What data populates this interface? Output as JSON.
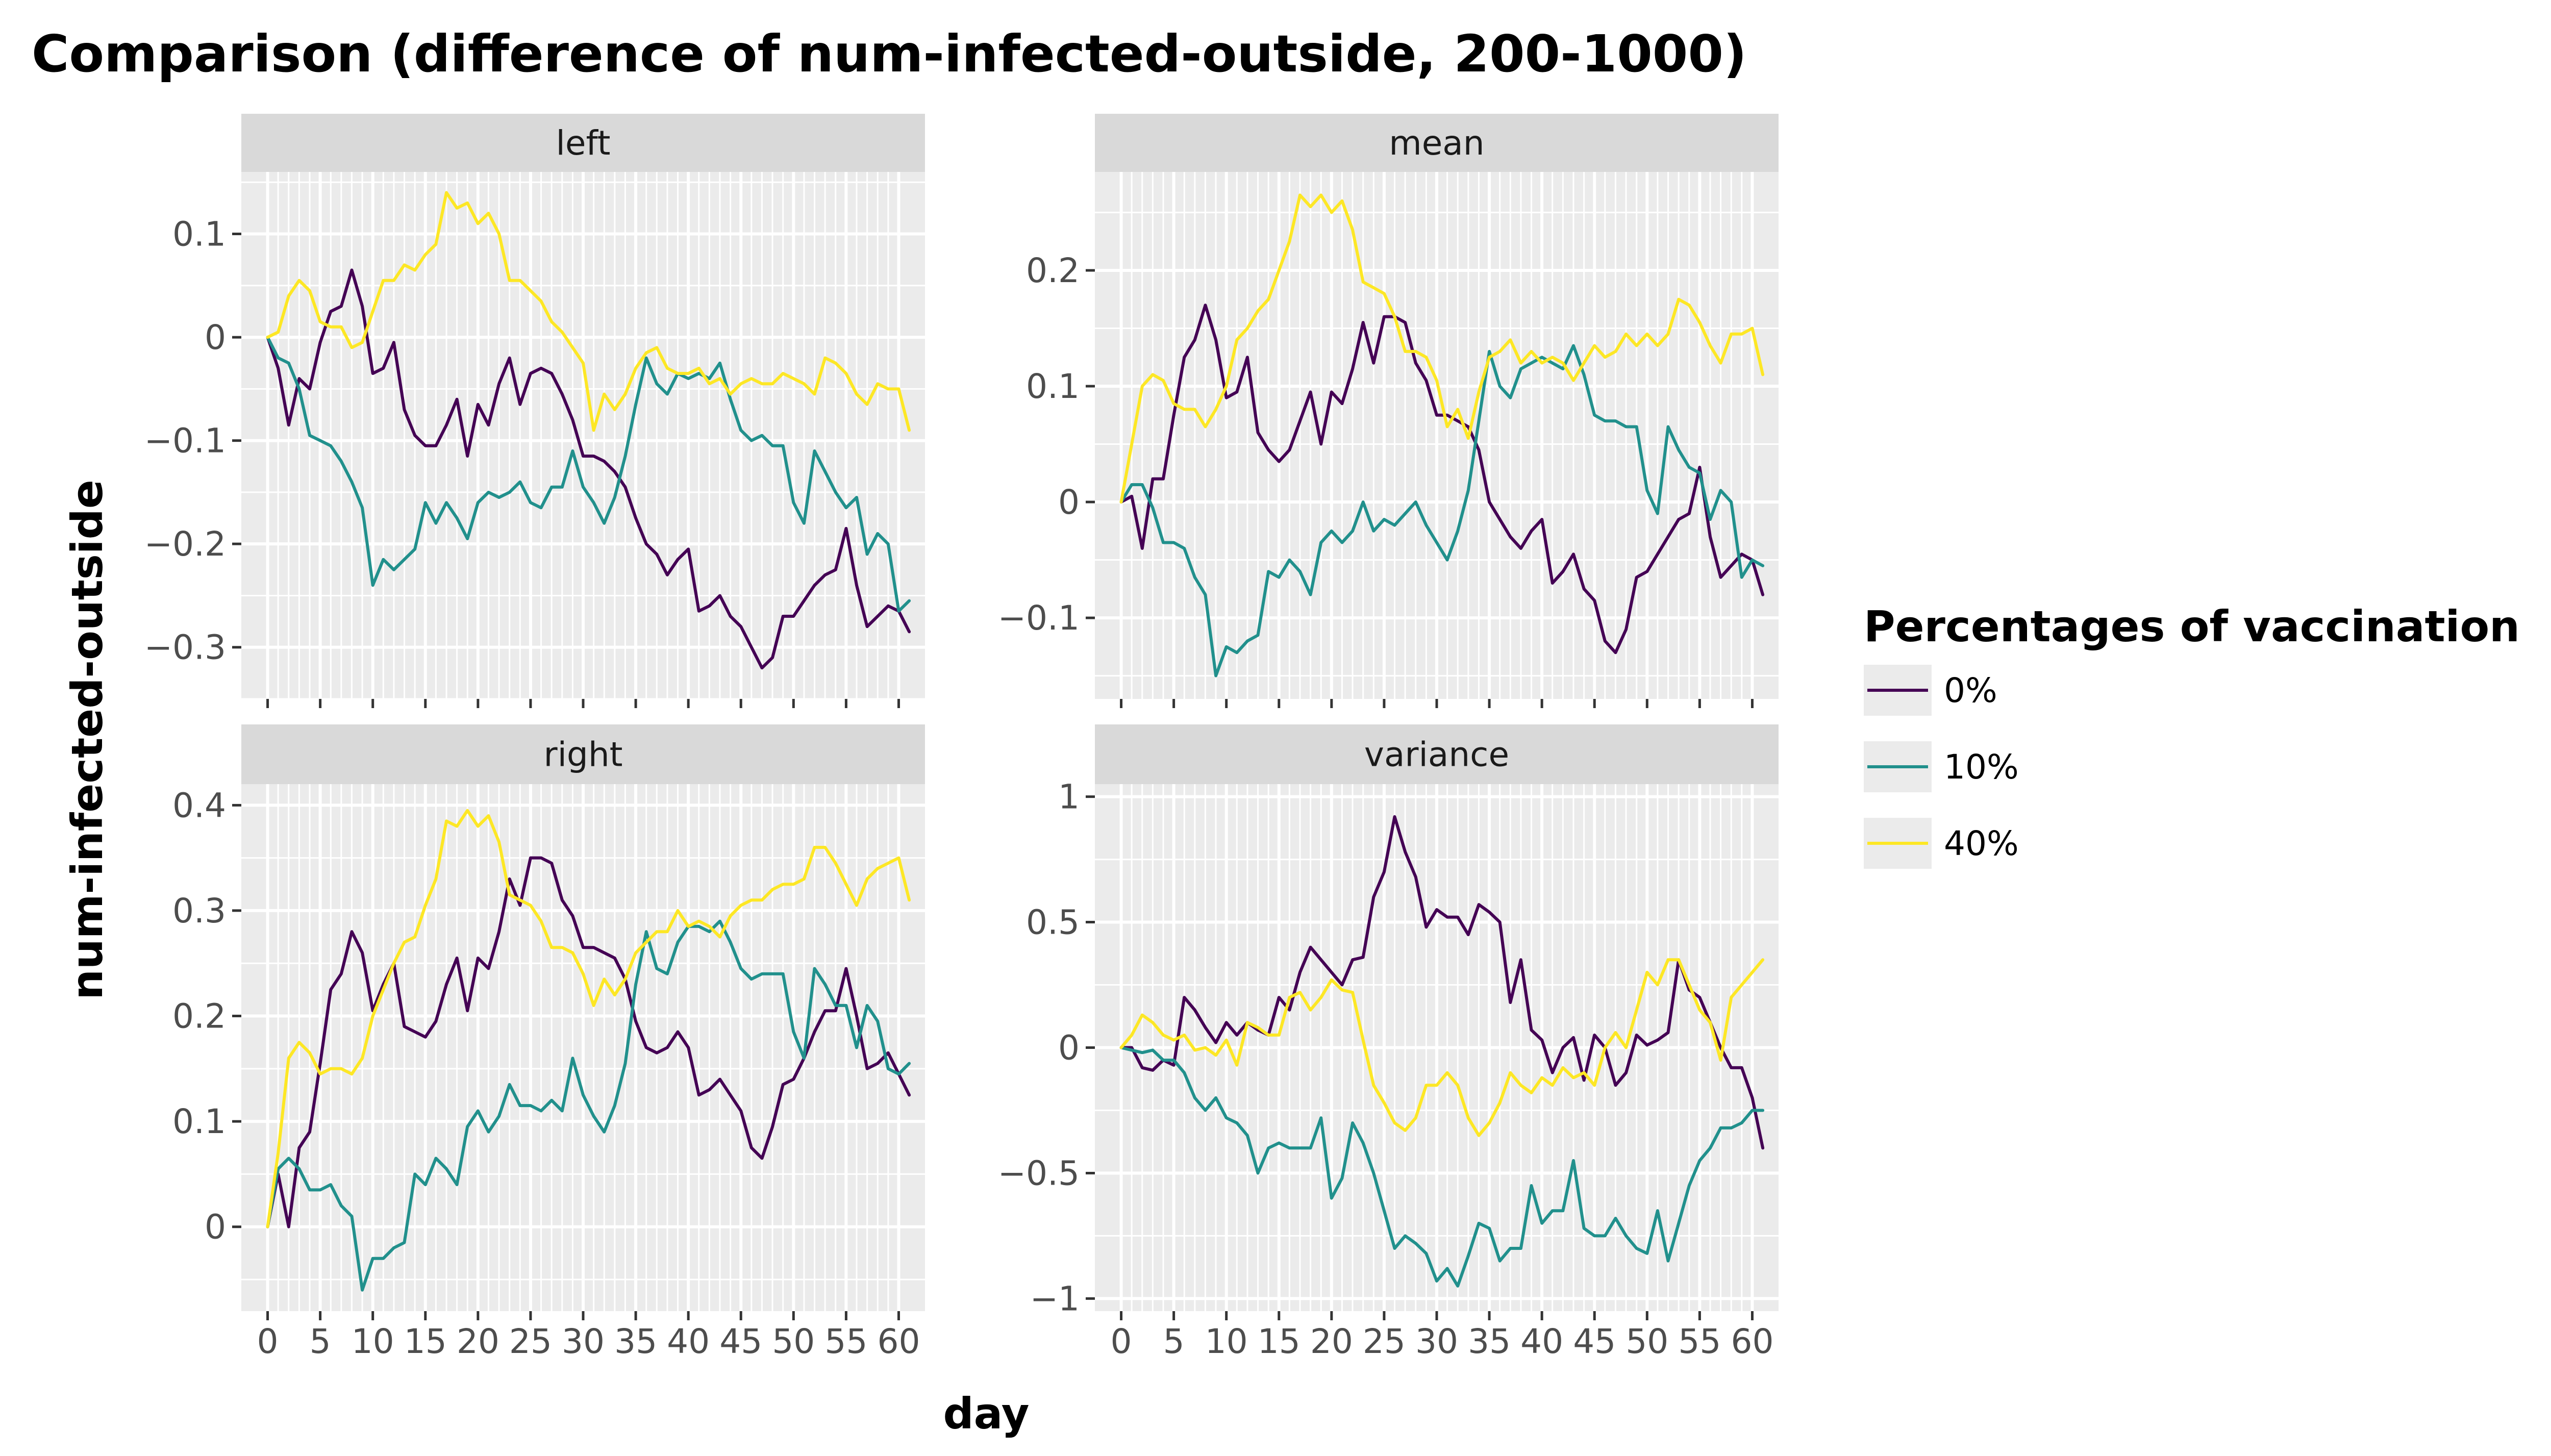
{
  "chart_data": {
    "type": "line",
    "title": "Comparison (difference of num-infected-outside, 200-1000)",
    "xlabel": "day",
    "ylabel": "num-infected-outside",
    "x_ticks": [
      0,
      5,
      10,
      15,
      20,
      25,
      30,
      35,
      40,
      45,
      50,
      55,
      60
    ],
    "x_tick_labels": [
      "0",
      "5",
      "10",
      "15",
      "20",
      "25",
      "30",
      "35",
      "40",
      "45",
      "50",
      "55",
      "60"
    ],
    "xlim": [
      -2.5,
      62.5
    ],
    "grid": true,
    "legend": {
      "title": "Percentages of vaccination",
      "placement": "right",
      "entries": [
        {
          "label": "0%",
          "color": "#440154"
        },
        {
          "label": "10%",
          "color": "#21908c"
        },
        {
          "label": "40%",
          "color": "#fde725"
        }
      ]
    },
    "panels": [
      {
        "strip": "left",
        "ylim": [
          -0.35,
          0.16
        ],
        "y_ticks": [
          0.1,
          0,
          -0.1,
          -0.2,
          -0.3
        ],
        "y_tick_labels": [
          "0.1",
          "0",
          "−0.1",
          "−0.2",
          "−0.3"
        ],
        "series": [
          {
            "name": "0%",
            "values": [
              0,
              -0.03,
              -0.085,
              -0.04,
              -0.05,
              -0.005,
              0.025,
              0.03,
              0.065,
              0.03,
              -0.035,
              -0.03,
              -0.005,
              -0.07,
              -0.095,
              -0.105,
              -0.105,
              -0.085,
              -0.06,
              -0.115,
              -0.065,
              -0.085,
              -0.045,
              -0.02,
              -0.065,
              -0.035,
              -0.03,
              -0.035,
              -0.055,
              -0.08,
              -0.115,
              -0.115,
              -0.12,
              -0.13,
              -0.145,
              -0.175,
              -0.2,
              -0.21,
              -0.23,
              -0.215,
              -0.205,
              -0.265,
              -0.26,
              -0.25,
              -0.27,
              -0.28,
              -0.3,
              -0.32,
              -0.31,
              -0.27,
              -0.27,
              -0.255,
              -0.24,
              -0.23,
              -0.225,
              -0.185,
              -0.24,
              -0.28,
              -0.27,
              -0.26,
              -0.265,
              -0.285
            ]
          },
          {
            "name": "10%",
            "values": [
              0,
              -0.02,
              -0.025,
              -0.05,
              -0.095,
              -0.1,
              -0.105,
              -0.12,
              -0.14,
              -0.165,
              -0.24,
              -0.215,
              -0.225,
              -0.215,
              -0.205,
              -0.16,
              -0.18,
              -0.16,
              -0.175,
              -0.195,
              -0.16,
              -0.15,
              -0.155,
              -0.15,
              -0.14,
              -0.16,
              -0.165,
              -0.145,
              -0.145,
              -0.11,
              -0.145,
              -0.16,
              -0.18,
              -0.155,
              -0.115,
              -0.065,
              -0.02,
              -0.045,
              -0.055,
              -0.035,
              -0.04,
              -0.035,
              -0.04,
              -0.025,
              -0.06,
              -0.09,
              -0.1,
              -0.095,
              -0.105,
              -0.105,
              -0.16,
              -0.18,
              -0.11,
              -0.13,
              -0.15,
              -0.165,
              -0.155,
              -0.21,
              -0.19,
              -0.2,
              -0.265,
              -0.255
            ]
          },
          {
            "name": "40%",
            "values": [
              0,
              0.005,
              0.04,
              0.055,
              0.045,
              0.015,
              0.01,
              0.01,
              -0.01,
              -0.005,
              0.025,
              0.055,
              0.055,
              0.07,
              0.065,
              0.08,
              0.09,
              0.14,
              0.125,
              0.13,
              0.11,
              0.12,
              0.1,
              0.055,
              0.055,
              0.045,
              0.035,
              0.015,
              0.005,
              -0.01,
              -0.025,
              -0.09,
              -0.055,
              -0.07,
              -0.055,
              -0.03,
              -0.015,
              -0.01,
              -0.03,
              -0.035,
              -0.035,
              -0.03,
              -0.045,
              -0.04,
              -0.055,
              -0.045,
              -0.04,
              -0.045,
              -0.045,
              -0.035,
              -0.04,
              -0.045,
              -0.055,
              -0.02,
              -0.025,
              -0.035,
              -0.055,
              -0.065,
              -0.045,
              -0.05,
              -0.05,
              -0.09
            ]
          }
        ]
      },
      {
        "strip": "mean",
        "ylim": [
          -0.17,
          0.285
        ],
        "y_ticks": [
          0.2,
          0.1,
          0,
          -0.1
        ],
        "y_tick_labels": [
          "0.2",
          "0.1",
          "0",
          "−0.1"
        ],
        "series": [
          {
            "name": "0%",
            "values": [
              0,
              0.005,
              -0.04,
              0.02,
              0.02,
              0.075,
              0.125,
              0.14,
              0.17,
              0.14,
              0.09,
              0.095,
              0.125,
              0.06,
              0.045,
              0.035,
              0.045,
              0.07,
              0.095,
              0.05,
              0.095,
              0.085,
              0.115,
              0.155,
              0.12,
              0.16,
              0.16,
              0.155,
              0.12,
              0.105,
              0.075,
              0.075,
              0.07,
              0.065,
              0.045,
              0,
              -0.015,
              -0.03,
              -0.04,
              -0.025,
              -0.015,
              -0.07,
              -0.06,
              -0.045,
              -0.075,
              -0.085,
              -0.12,
              -0.13,
              -0.11,
              -0.065,
              -0.06,
              -0.045,
              -0.03,
              -0.015,
              -0.01,
              0.03,
              -0.03,
              -0.065,
              -0.055,
              -0.045,
              -0.05,
              -0.08
            ]
          },
          {
            "name": "10%",
            "values": [
              0,
              0.015,
              0.015,
              -0.005,
              -0.035,
              -0.035,
              -0.04,
              -0.065,
              -0.08,
              -0.15,
              -0.125,
              -0.13,
              -0.12,
              -0.115,
              -0.06,
              -0.065,
              -0.05,
              -0.06,
              -0.08,
              -0.035,
              -0.025,
              -0.035,
              -0.025,
              0,
              -0.025,
              -0.015,
              -0.02,
              -0.01,
              0,
              -0.02,
              -0.035,
              -0.05,
              -0.025,
              0.01,
              0.07,
              0.13,
              0.1,
              0.09,
              0.115,
              0.12,
              0.125,
              0.12,
              0.115,
              0.135,
              0.11,
              0.075,
              0.07,
              0.07,
              0.065,
              0.065,
              0.01,
              -0.01,
              0.065,
              0.045,
              0.03,
              0.025,
              -0.015,
              0.01,
              0,
              -0.065,
              -0.05,
              -0.055
            ]
          },
          {
            "name": "40%",
            "values": [
              0,
              0.05,
              0.1,
              0.11,
              0.105,
              0.085,
              0.08,
              0.08,
              0.065,
              0.08,
              0.1,
              0.14,
              0.15,
              0.165,
              0.175,
              0.2,
              0.225,
              0.265,
              0.255,
              0.265,
              0.25,
              0.26,
              0.235,
              0.19,
              0.185,
              0.18,
              0.16,
              0.13,
              0.13,
              0.125,
              0.105,
              0.065,
              0.08,
              0.055,
              0.095,
              0.125,
              0.13,
              0.14,
              0.12,
              0.13,
              0.12,
              0.125,
              0.12,
              0.105,
              0.12,
              0.135,
              0.125,
              0.13,
              0.145,
              0.135,
              0.145,
              0.135,
              0.145,
              0.175,
              0.17,
              0.155,
              0.135,
              0.12,
              0.145,
              0.145,
              0.15,
              0.11
            ]
          }
        ]
      },
      {
        "strip": "right",
        "ylim": [
          -0.08,
          0.42
        ],
        "y_ticks": [
          0.4,
          0.3,
          0.2,
          0.1,
          0
        ],
        "y_tick_labels": [
          "0.4",
          "0.3",
          "0.2",
          "0.1",
          "0"
        ],
        "series": [
          {
            "name": "0%",
            "values": [
              0,
              0.05,
              0,
              0.075,
              0.09,
              0.155,
              0.225,
              0.24,
              0.28,
              0.26,
              0.205,
              0.23,
              0.25,
              0.19,
              0.185,
              0.18,
              0.195,
              0.23,
              0.255,
              0.205,
              0.255,
              0.245,
              0.28,
              0.33,
              0.305,
              0.35,
              0.35,
              0.345,
              0.31,
              0.295,
              0.265,
              0.265,
              0.26,
              0.255,
              0.235,
              0.195,
              0.17,
              0.165,
              0.17,
              0.185,
              0.17,
              0.125,
              0.13,
              0.14,
              0.125,
              0.11,
              0.075,
              0.065,
              0.095,
              0.135,
              0.14,
              0.16,
              0.185,
              0.205,
              0.205,
              0.245,
              0.2,
              0.15,
              0.155,
              0.165,
              0.145,
              0.125
            ]
          },
          {
            "name": "10%",
            "values": [
              0,
              0.055,
              0.065,
              0.055,
              0.035,
              0.035,
              0.04,
              0.02,
              0.01,
              -0.06,
              -0.03,
              -0.03,
              -0.02,
              -0.015,
              0.05,
              0.04,
              0.065,
              0.055,
              0.04,
              0.095,
              0.11,
              0.09,
              0.105,
              0.135,
              0.115,
              0.115,
              0.11,
              0.12,
              0.11,
              0.16,
              0.125,
              0.105,
              0.09,
              0.115,
              0.155,
              0.23,
              0.28,
              0.245,
              0.24,
              0.27,
              0.285,
              0.285,
              0.28,
              0.29,
              0.27,
              0.245,
              0.235,
              0.24,
              0.24,
              0.24,
              0.185,
              0.16,
              0.245,
              0.23,
              0.21,
              0.21,
              0.17,
              0.21,
              0.195,
              0.15,
              0.145,
              0.155
            ]
          },
          {
            "name": "40%",
            "values": [
              0,
              0.07,
              0.16,
              0.175,
              0.165,
              0.145,
              0.15,
              0.15,
              0.145,
              0.16,
              0.2,
              0.225,
              0.25,
              0.27,
              0.275,
              0.305,
              0.33,
              0.385,
              0.38,
              0.395,
              0.38,
              0.39,
              0.365,
              0.315,
              0.31,
              0.305,
              0.29,
              0.265,
              0.265,
              0.26,
              0.24,
              0.21,
              0.235,
              0.22,
              0.235,
              0.26,
              0.27,
              0.28,
              0.28,
              0.3,
              0.285,
              0.29,
              0.285,
              0.275,
              0.295,
              0.305,
              0.31,
              0.31,
              0.32,
              0.325,
              0.325,
              0.33,
              0.36,
              0.36,
              0.345,
              0.325,
              0.305,
              0.33,
              0.34,
              0.345,
              0.35,
              0.31
            ]
          }
        ]
      },
      {
        "strip": "variance",
        "ylim": [
          -1.05,
          1.05
        ],
        "y_ticks": [
          1,
          0.5,
          0,
          -0.5,
          -1
        ],
        "y_tick_labels": [
          "1",
          "0.5",
          "0",
          "−0.5",
          "−1"
        ],
        "series": [
          {
            "name": "0%",
            "values": [
              0,
              0,
              -0.08,
              -0.09,
              -0.05,
              -0.07,
              0.2,
              0.15,
              0.08,
              0.02,
              0.1,
              0.05,
              0.1,
              0.07,
              0.05,
              0.2,
              0.15,
              0.3,
              0.4,
              0.35,
              0.3,
              0.25,
              0.35,
              0.36,
              0.6,
              0.7,
              0.92,
              0.78,
              0.68,
              0.48,
              0.55,
              0.52,
              0.52,
              0.45,
              0.57,
              0.54,
              0.5,
              0.18,
              0.35,
              0.07,
              0.03,
              -0.1,
              0,
              0.04,
              -0.13,
              0.05,
              0,
              -0.15,
              -0.1,
              0.05,
              0.01,
              0.03,
              0.06,
              0.35,
              0.23,
              0.2,
              0.1,
              0,
              -0.08,
              -0.08,
              -0.2,
              -0.4
            ]
          },
          {
            "name": "10%",
            "values": [
              0,
              -0.01,
              -0.02,
              -0.01,
              -0.05,
              -0.05,
              -0.1,
              -0.2,
              -0.25,
              -0.2,
              -0.28,
              -0.3,
              -0.35,
              -0.5,
              -0.4,
              -0.38,
              -0.4,
              -0.4,
              -0.4,
              -0.28,
              -0.6,
              -0.52,
              -0.3,
              -0.38,
              -0.5,
              -0.65,
              -0.8,
              -0.75,
              -0.78,
              -0.82,
              -0.93,
              -0.88,
              -0.95,
              -0.83,
              -0.7,
              -0.72,
              -0.85,
              -0.8,
              -0.8,
              -0.55,
              -0.7,
              -0.65,
              -0.65,
              -0.45,
              -0.72,
              -0.75,
              -0.75,
              -0.68,
              -0.75,
              -0.8,
              -0.82,
              -0.65,
              -0.85,
              -0.7,
              -0.55,
              -0.45,
              -0.4,
              -0.32,
              -0.32,
              -0.3,
              -0.25,
              -0.25
            ]
          },
          {
            "name": "40%",
            "values": [
              0,
              0.05,
              0.13,
              0.1,
              0.05,
              0.03,
              0.05,
              -0.01,
              0,
              -0.03,
              0.03,
              -0.07,
              0.1,
              0.08,
              0.05,
              0.05,
              0.2,
              0.22,
              0.15,
              0.2,
              0.27,
              0.23,
              0.22,
              0.03,
              -0.15,
              -0.22,
              -0.3,
              -0.33,
              -0.28,
              -0.15,
              -0.15,
              -0.1,
              -0.15,
              -0.28,
              -0.35,
              -0.3,
              -0.22,
              -0.1,
              -0.15,
              -0.18,
              -0.12,
              -0.15,
              -0.08,
              -0.12,
              -0.1,
              -0.15,
              0,
              0.06,
              0,
              0.15,
              0.3,
              0.25,
              0.35,
              0.35,
              0.25,
              0.15,
              0.1,
              -0.05,
              0.2,
              0.25,
              0.3,
              0.35
            ]
          }
        ]
      }
    ]
  }
}
